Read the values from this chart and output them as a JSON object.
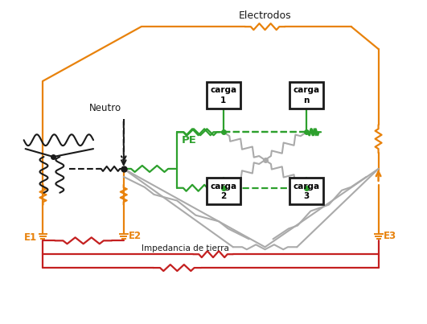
{
  "bg_color": "#ffffff",
  "colors": {
    "orange": "#E8820C",
    "green": "#2DA02D",
    "red": "#C42020",
    "gray": "#AAAAAA",
    "black": "#1A1A1A"
  },
  "labels": {
    "neutro": "Neutro",
    "pe": "PE",
    "electrodos": "Electrodos",
    "impedancia": "Impedancia de tierra",
    "e1": "E1",
    "e2": "E2",
    "e3": "E3",
    "carga1": "carga\n1",
    "carga2": "carga\n2",
    "carga3": "carga\n3",
    "cargan": "carga\nn"
  }
}
